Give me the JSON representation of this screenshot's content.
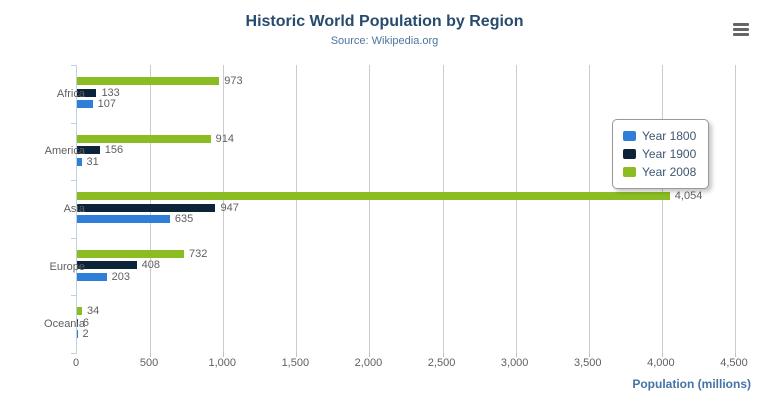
{
  "header": {
    "title": "Historic World Population by Region",
    "subtitle": "Source: Wikipedia.org",
    "menu_icon": "hamburger-icon"
  },
  "colors": {
    "title_text": "#274b6d",
    "subtitle_text": "#4d759e",
    "axis_line": "#c0d0e0",
    "gridline": "#cccccc",
    "axis_label_text": "#606060",
    "data_label_text": "#606060",
    "axis_title_text": "#4572a7",
    "legend_border": "#999999",
    "legend_text": "#3e576f",
    "menu_icon": "#666666"
  },
  "chart_data": {
    "type": "bar",
    "orientation": "horizontal",
    "title": "Historic World Population by Region",
    "subtitle": "Source: Wikipedia.org",
    "categories": [
      "Africa",
      "America",
      "Asia",
      "Europe",
      "Oceania"
    ],
    "series": [
      {
        "name": "Year 1800",
        "color": "#2f7ed8",
        "values": [
          107,
          31,
          635,
          203,
          2
        ]
      },
      {
        "name": "Year 1900",
        "color": "#0d233a",
        "values": [
          133,
          156,
          947,
          408,
          6
        ]
      },
      {
        "name": "Year 2008",
        "color": "#8bbc21",
        "values": [
          973,
          914,
          4054,
          732,
          34
        ]
      }
    ],
    "bar_order_top_to_bottom": [
      "Year 2008",
      "Year 1900",
      "Year 1800"
    ],
    "data_labels": true,
    "data_label_format": "thousands-comma",
    "xlabel": "Population (millions)",
    "xlim": [
      0,
      4500
    ],
    "xticks": [
      0,
      500,
      1000,
      1500,
      2000,
      2500,
      3000,
      3500,
      4000,
      4500
    ],
    "grid": "vertical",
    "legend": {
      "position": "right",
      "entries": [
        "Year 1800",
        "Year 1900",
        "Year 2008"
      ]
    }
  }
}
